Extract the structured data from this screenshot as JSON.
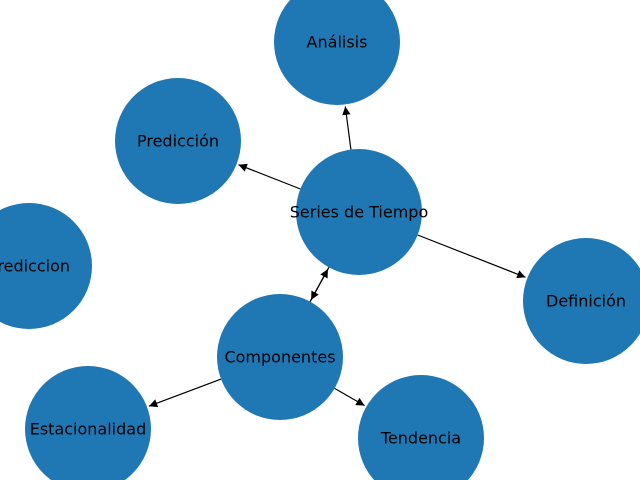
{
  "diagram": {
    "type": "directed-graph",
    "node_color": "#1f77b4",
    "edge_color": "#000000",
    "label_color": "#000000",
    "nodes": [
      {
        "id": "series",
        "label": "Series de Tiempo"
      },
      {
        "id": "analisis",
        "label": "Análisis"
      },
      {
        "id": "prediccion_acc",
        "label": "Predicción"
      },
      {
        "id": "definicion",
        "label": "Definición"
      },
      {
        "id": "componentes",
        "label": "Componentes"
      },
      {
        "id": "estacionalidad",
        "label": "Estacionalidad"
      },
      {
        "id": "tendencia",
        "label": "Tendencia"
      },
      {
        "id": "prediccion",
        "label": "Prediccion"
      }
    ],
    "edges": [
      {
        "from": "series",
        "to": "analisis"
      },
      {
        "from": "series",
        "to": "prediccion_acc"
      },
      {
        "from": "series",
        "to": "definicion"
      },
      {
        "from": "series",
        "to": "componentes"
      },
      {
        "from": "componentes",
        "to": "series"
      },
      {
        "from": "componentes",
        "to": "estacionalidad"
      },
      {
        "from": "componentes",
        "to": "tendencia"
      }
    ]
  }
}
